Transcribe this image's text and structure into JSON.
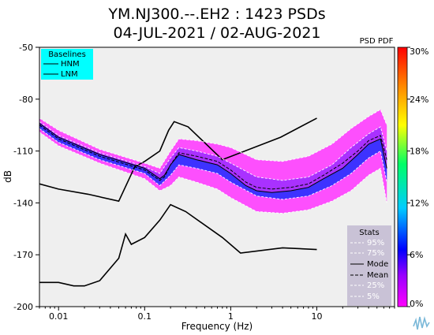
{
  "chart_data": {
    "type": "heatmap",
    "title_line1": "YM.NJ300.--.EH2 : 1423 PSDs",
    "title_line2": "04-JUL-2021 / 02-AUG-2021",
    "xlabel": "Frequency (Hz)",
    "ylabel": "dB",
    "x_scale": "log",
    "xlim": [
      0.006,
      80
    ],
    "ylim": [
      -200,
      -50
    ],
    "x_ticks": [
      0.01,
      0.1,
      1,
      10
    ],
    "x_tick_labels": [
      "0.01",
      "0.1",
      "1",
      "10"
    ],
    "y_ticks": [
      -50,
      -80,
      -110,
      -140,
      -170,
      -200
    ],
    "y_tick_labels": [
      "-50",
      "-80",
      "-110",
      "-140",
      "-170",
      "-200"
    ],
    "colorbar": {
      "title": "PSD PDF",
      "range": [
        0,
        30
      ],
      "ticks": [
        0,
        6,
        12,
        18,
        24,
        30
      ],
      "tick_labels": [
        "0%",
        "6%",
        "12%",
        "18%",
        "24%",
        "30%"
      ],
      "colors": [
        "#ff00ff",
        "#9900ff",
        "#0000ff",
        "#00ccff",
        "#00ff66",
        "#ffff00",
        "#ff8800",
        "#ff0000"
      ]
    },
    "baselines_legend": {
      "title": "Baselines",
      "entries": [
        "HNM",
        "LNM"
      ],
      "background": "#00ffff"
    },
    "stats_legend": {
      "title": "Stats",
      "entries": [
        "95%",
        "75%",
        "Mode",
        "Mean",
        "25%",
        "5%"
      ],
      "background": "#c9c2d6"
    },
    "series": [
      {
        "name": "HNM",
        "color": "#000000",
        "x": [
          0.006,
          0.01,
          0.022,
          0.05,
          0.077,
          0.1,
          0.15,
          0.19,
          0.22,
          0.32,
          0.8,
          3.8,
          10
        ],
        "y": [
          -129,
          -132,
          -135,
          -139,
          -119,
          -116,
          -110,
          -98,
          -93,
          -96,
          -115,
          -102,
          -91
        ]
      },
      {
        "name": "LNM",
        "color": "#000000",
        "x": [
          0.006,
          0.01,
          0.015,
          0.02,
          0.03,
          0.05,
          0.06,
          0.07,
          0.1,
          0.15,
          0.2,
          0.3,
          0.8,
          1.3,
          4,
          10
        ],
        "y": [
          -186,
          -186,
          -188,
          -188,
          -185,
          -172,
          -158,
          -164,
          -160,
          -150,
          -141,
          -145,
          -160,
          -169,
          -166,
          -167
        ]
      },
      {
        "name": "Mode",
        "color": "#000000",
        "x": [
          0.006,
          0.01,
          0.03,
          0.1,
          0.15,
          0.17,
          0.2,
          0.25,
          0.4,
          0.7,
          1,
          1.5,
          2,
          3,
          5,
          8,
          12,
          20,
          30,
          40,
          55,
          65
        ],
        "y": [
          -94,
          -102,
          -112,
          -120,
          -126,
          -124,
          -118,
          -112,
          -115,
          -118,
          -123,
          -130,
          -133,
          -134,
          -133,
          -131,
          -126,
          -120,
          -112,
          -106,
          -103,
          -120
        ]
      },
      {
        "name": "Mean",
        "color": "#000000",
        "x": [
          0.006,
          0.01,
          0.03,
          0.1,
          0.15,
          0.17,
          0.2,
          0.25,
          0.4,
          0.7,
          1,
          1.5,
          2,
          3,
          5,
          8,
          12,
          20,
          30,
          40,
          55,
          65
        ],
        "y": [
          -95,
          -103,
          -113,
          -121,
          -127,
          -125,
          -118,
          -111,
          -113,
          -116,
          -121,
          -128,
          -131,
          -132,
          -131,
          -129,
          -124,
          -117,
          -110,
          -104,
          -101,
          -115
        ]
      },
      {
        "name": "95%",
        "color": "#ffffff",
        "x": [
          0.006,
          0.01,
          0.03,
          0.1,
          0.15,
          0.2,
          0.25,
          0.4,
          0.7,
          1,
          2,
          4,
          8,
          15,
          25,
          40,
          55,
          65
        ],
        "y": [
          -91,
          -98,
          -109,
          -117,
          -120,
          -110,
          -103,
          -104,
          -106,
          -108,
          -115,
          -116,
          -113,
          -106,
          -97,
          -90,
          -86,
          -95
        ]
      },
      {
        "name": "75%",
        "color": "#ffffff",
        "x": [
          0.006,
          0.01,
          0.03,
          0.1,
          0.15,
          0.2,
          0.25,
          0.4,
          0.7,
          1,
          2,
          4,
          8,
          15,
          25,
          40,
          55,
          65
        ],
        "y": [
          -93,
          -101,
          -111,
          -119,
          -123,
          -114,
          -108,
          -110,
          -113,
          -117,
          -125,
          -127,
          -125,
          -118,
          -108,
          -100,
          -96,
          -110
        ]
      },
      {
        "name": "25%",
        "color": "#ffffff",
        "x": [
          0.006,
          0.01,
          0.03,
          0.1,
          0.15,
          0.2,
          0.25,
          0.4,
          0.7,
          1,
          2,
          4,
          8,
          15,
          25,
          40,
          55,
          65
        ],
        "y": [
          -97,
          -105,
          -115,
          -123,
          -130,
          -124,
          -118,
          -120,
          -123,
          -128,
          -136,
          -138,
          -136,
          -130,
          -123,
          -114,
          -110,
          -128
        ]
      },
      {
        "name": "5%",
        "color": "#ffffff",
        "x": [
          0.006,
          0.01,
          0.03,
          0.1,
          0.15,
          0.2,
          0.25,
          0.4,
          0.7,
          1,
          2,
          4,
          8,
          15,
          25,
          40,
          55,
          65
        ],
        "y": [
          -99,
          -107,
          -117,
          -126,
          -133,
          -130,
          -125,
          -128,
          -132,
          -137,
          -145,
          -146,
          -144,
          -139,
          -133,
          -124,
          -120,
          -140
        ]
      }
    ]
  }
}
